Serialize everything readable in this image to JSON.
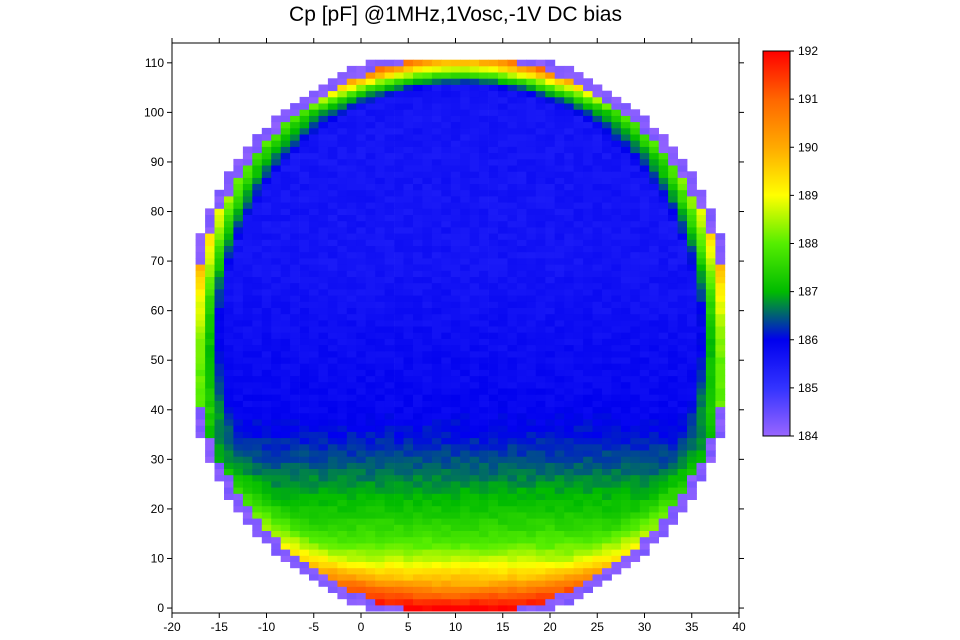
{
  "chart_data": {
    "type": "heatmap",
    "title": "Cp [pF] @1MHz,1Vosc,-1V DC bias",
    "xlabel": "",
    "ylabel": "",
    "xlim": [
      -20,
      40
    ],
    "ylim": [
      -1,
      114
    ],
    "x_ticks": [
      -20,
      -15,
      -10,
      -5,
      0,
      5,
      10,
      15,
      20,
      25,
      30,
      35,
      40
    ],
    "y_ticks": [
      0,
      10,
      20,
      30,
      40,
      50,
      60,
      70,
      80,
      90,
      100,
      110
    ],
    "colorbar": {
      "range": [
        184,
        192
      ],
      "ticks": [
        184,
        185,
        186,
        187,
        188,
        189,
        190,
        191,
        192
      ],
      "colors": [
        "#9966ff",
        "#3333ff",
        "#0000ee",
        "#00bb00",
        "#55ee00",
        "#ffff00",
        "#ffaa00",
        "#ff6600",
        "#ff0000"
      ]
    },
    "wafer": {
      "center_x": 10.5,
      "center_y": 55,
      "radius_x": 29.5,
      "radius_y": 58.5,
      "cell_width": 1,
      "cell_height": 1.25
    },
    "value_profile": {
      "note_y": [
        0,
        2,
        5,
        8,
        10,
        13,
        16,
        20,
        25,
        30,
        35,
        40,
        50,
        60,
        70,
        80,
        90,
        100,
        108
      ],
      "interior_values": [
        192,
        191,
        190,
        189.2,
        188.6,
        188,
        187.6,
        187.2,
        186.8,
        186.4,
        186.1,
        185.9,
        185.8,
        185.7,
        185.6,
        185.6,
        185.6,
        185.6,
        185.7
      ],
      "edge_values": [
        192,
        191.5,
        191,
        190,
        189.5,
        189,
        188.5,
        188,
        187.5,
        187,
        187,
        188,
        189,
        190,
        190,
        189,
        188,
        188,
        191
      ]
    }
  }
}
